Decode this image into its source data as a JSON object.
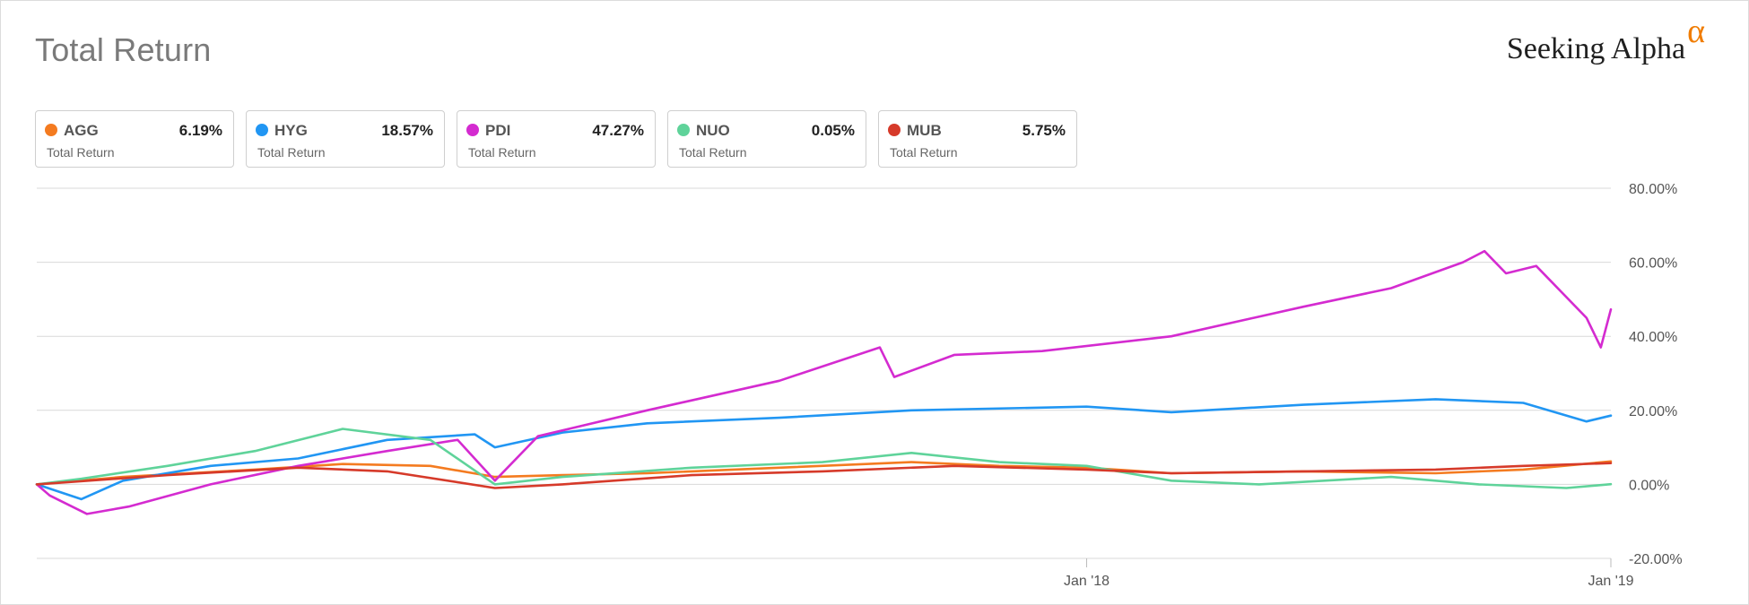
{
  "header": {
    "title": "Total Return",
    "brand_text": "Seeking Alpha",
    "brand_symbol": "α"
  },
  "legend": [
    {
      "ticker": "AGG",
      "value": "6.19%",
      "sub": "Total Return",
      "color": "#f47b20"
    },
    {
      "ticker": "HYG",
      "value": "18.57%",
      "sub": "Total Return",
      "color": "#2196f3"
    },
    {
      "ticker": "PDI",
      "value": "47.27%",
      "sub": "Total Return",
      "color": "#d42bd0"
    },
    {
      "ticker": "NUO",
      "value": "0.05%",
      "sub": "Total Return",
      "color": "#5fd39a"
    },
    {
      "ticker": "MUB",
      "value": "5.75%",
      "sub": "Total Return",
      "color": "#d63a2a"
    }
  ],
  "chart_data": {
    "type": "line",
    "title": "Total Return",
    "y_tick_labels": [
      "80.00%",
      "60.00%",
      "40.00%",
      "20.00%",
      "0.00%",
      "-20.00%"
    ],
    "y_ticks": [
      80,
      60,
      40,
      20,
      0,
      -20
    ],
    "ylim": [
      -20,
      80
    ],
    "x_tick_labels": [
      "Jan '18",
      "Jan '19"
    ],
    "x_ticks": [
      "2018-01-01",
      "2019-01-01"
    ],
    "xlim": [
      "2016-01-01",
      "2019-01-01"
    ],
    "grid": "horizontal",
    "legend_position": "top",
    "series": [
      {
        "name": "AGG",
        "color": "#f47b20",
        "points": [
          [
            "2016-01-01",
            0
          ],
          [
            "2016-03-01",
            2
          ],
          [
            "2016-06-01",
            4
          ],
          [
            "2016-08-01",
            5.5
          ],
          [
            "2016-10-01",
            5
          ],
          [
            "2016-11-15",
            2
          ],
          [
            "2017-01-01",
            2.5
          ],
          [
            "2017-03-01",
            3
          ],
          [
            "2017-06-01",
            4.5
          ],
          [
            "2017-09-01",
            6
          ],
          [
            "2017-11-01",
            5
          ],
          [
            "2018-01-01",
            4.5
          ],
          [
            "2018-03-01",
            3
          ],
          [
            "2018-06-01",
            3.5
          ],
          [
            "2018-09-01",
            3
          ],
          [
            "2018-11-01",
            4
          ],
          [
            "2019-01-01",
            6.19
          ]
        ]
      },
      {
        "name": "HYG",
        "color": "#2196f3",
        "points": [
          [
            "2016-01-01",
            0
          ],
          [
            "2016-02-01",
            -4
          ],
          [
            "2016-03-01",
            1
          ],
          [
            "2016-05-01",
            5
          ],
          [
            "2016-07-01",
            7
          ],
          [
            "2016-09-01",
            12
          ],
          [
            "2016-11-01",
            13.5
          ],
          [
            "2016-11-15",
            10
          ],
          [
            "2017-01-01",
            14
          ],
          [
            "2017-03-01",
            16.5
          ],
          [
            "2017-06-01",
            18
          ],
          [
            "2017-09-01",
            20
          ],
          [
            "2018-01-01",
            21
          ],
          [
            "2018-03-01",
            19.5
          ],
          [
            "2018-06-01",
            21.5
          ],
          [
            "2018-09-01",
            23
          ],
          [
            "2018-11-01",
            22
          ],
          [
            "2018-12-15",
            17
          ],
          [
            "2019-01-01",
            18.57
          ]
        ]
      },
      {
        "name": "PDI",
        "color": "#d42bd0",
        "points": [
          [
            "2016-01-01",
            0
          ],
          [
            "2016-01-10",
            -3
          ],
          [
            "2016-02-05",
            -8
          ],
          [
            "2016-03-05",
            -6
          ],
          [
            "2016-05-01",
            0
          ],
          [
            "2016-07-01",
            5
          ],
          [
            "2016-09-01",
            9
          ],
          [
            "2016-10-20",
            12
          ],
          [
            "2016-11-15",
            1
          ],
          [
            "2016-12-15",
            13
          ],
          [
            "2017-03-01",
            20
          ],
          [
            "2017-06-01",
            28
          ],
          [
            "2017-08-10",
            37
          ],
          [
            "2017-08-20",
            29
          ],
          [
            "2017-10-01",
            35
          ],
          [
            "2017-12-01",
            36
          ],
          [
            "2018-03-01",
            40
          ],
          [
            "2018-06-01",
            48
          ],
          [
            "2018-08-01",
            53
          ],
          [
            "2018-09-20",
            60
          ],
          [
            "2018-10-05",
            63
          ],
          [
            "2018-10-20",
            57
          ],
          [
            "2018-11-10",
            59
          ],
          [
            "2018-12-15",
            45
          ],
          [
            "2018-12-25",
            37
          ],
          [
            "2019-01-01",
            47.27
          ]
        ]
      },
      {
        "name": "NUO",
        "color": "#5fd39a",
        "points": [
          [
            "2016-01-01",
            0
          ],
          [
            "2016-02-01",
            1.5
          ],
          [
            "2016-04-01",
            5
          ],
          [
            "2016-06-01",
            9
          ],
          [
            "2016-08-01",
            15
          ],
          [
            "2016-10-01",
            12
          ],
          [
            "2016-11-15",
            0
          ],
          [
            "2017-01-01",
            2
          ],
          [
            "2017-04-01",
            4.5
          ],
          [
            "2017-07-01",
            6
          ],
          [
            "2017-09-01",
            8.5
          ],
          [
            "2017-11-01",
            6
          ],
          [
            "2018-01-01",
            5
          ],
          [
            "2018-03-01",
            1
          ],
          [
            "2018-05-01",
            0
          ],
          [
            "2018-08-01",
            2
          ],
          [
            "2018-10-01",
            0
          ],
          [
            "2018-12-01",
            -1
          ],
          [
            "2019-01-01",
            0.05
          ]
        ]
      },
      {
        "name": "MUB",
        "color": "#d63a2a",
        "points": [
          [
            "2016-01-01",
            0
          ],
          [
            "2016-04-01",
            2.5
          ],
          [
            "2016-07-01",
            4.5
          ],
          [
            "2016-09-01",
            3.5
          ],
          [
            "2016-11-15",
            -1
          ],
          [
            "2017-01-01",
            0
          ],
          [
            "2017-04-01",
            2.5
          ],
          [
            "2017-07-01",
            3.5
          ],
          [
            "2017-10-01",
            5
          ],
          [
            "2018-01-01",
            4
          ],
          [
            "2018-03-01",
            3
          ],
          [
            "2018-06-01",
            3.5
          ],
          [
            "2018-09-01",
            4
          ],
          [
            "2018-11-01",
            5
          ],
          [
            "2019-01-01",
            5.75
          ]
        ]
      }
    ]
  }
}
